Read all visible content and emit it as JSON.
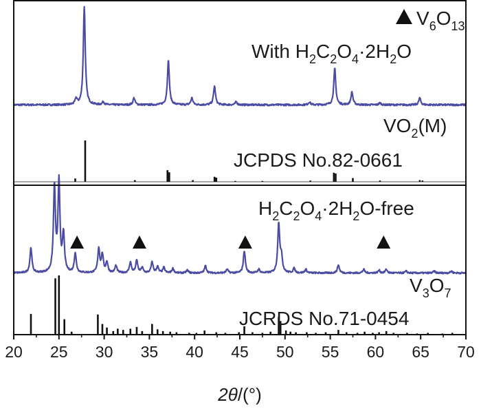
{
  "chart_data": {
    "type": "line",
    "xlabel": {
      "symbol": "2θ",
      "unit": "/(°)"
    },
    "xlim": [
      20,
      70
    ],
    "x_ticks": [
      "20",
      "25",
      "30",
      "35",
      "40",
      "45",
      "50",
      "55",
      "60",
      "65",
      "70"
    ],
    "grid": false,
    "legend": {
      "marker": "▲",
      "text": "V6O13",
      "placement": "top-right"
    },
    "colors": {
      "measured": "#4b4ba3",
      "reference": "#111111",
      "frame": "#111111"
    },
    "panels": [
      {
        "id": "top",
        "series": [
          {
            "kind": "measured",
            "label": "With H2C2O4·2H2O",
            "baseline": 0.04,
            "peaks": [
              [
                26.9,
                0.06
              ],
              [
                27.8,
                1.0
              ],
              [
                29.9,
                0.03
              ],
              [
                33.3,
                0.07
              ],
              [
                37.1,
                0.45
              ],
              [
                39.7,
                0.07
              ],
              [
                42.2,
                0.19
              ],
              [
                44.6,
                0.03
              ],
              [
                52.7,
                0.03
              ],
              [
                55.5,
                0.37
              ],
              [
                57.4,
                0.13
              ],
              [
                60.5,
                0.02
              ],
              [
                64.9,
                0.07
              ]
            ]
          },
          {
            "kind": "reference",
            "label": "VO2(M)",
            "label2": "JCPDS No.82-0661",
            "lines": [
              [
                26.8,
                0.08
              ],
              [
                27.9,
                1.0
              ],
              [
                33.4,
                0.04
              ],
              [
                37.0,
                0.28
              ],
              [
                37.2,
                0.23
              ],
              [
                39.8,
                0.04
              ],
              [
                42.2,
                0.12
              ],
              [
                42.4,
                0.1
              ],
              [
                44.5,
                0.02
              ],
              [
                47.5,
                0.02
              ],
              [
                52.8,
                0.03
              ],
              [
                55.4,
                0.22
              ],
              [
                55.6,
                0.2
              ],
              [
                57.5,
                0.09
              ],
              [
                60.5,
                0.03
              ],
              [
                64.9,
                0.04
              ],
              [
                65.2,
                0.03
              ]
            ]
          }
        ]
      },
      {
        "id": "bottom",
        "series": [
          {
            "kind": "measured",
            "label": "H2C2O4·2H2O-free",
            "baseline": 0.05,
            "peaks": [
              [
                21.9,
                0.28
              ],
              [
                24.5,
                0.95
              ],
              [
                25.0,
                1.0
              ],
              [
                25.5,
                0.42
              ],
              [
                26.8,
                0.22
              ],
              [
                29.4,
                0.27
              ],
              [
                29.8,
                0.2
              ],
              [
                30.3,
                0.12
              ],
              [
                31.3,
                0.08
              ],
              [
                32.9,
                0.12
              ],
              [
                33.6,
                0.14
              ],
              [
                34.2,
                0.06
              ],
              [
                35.3,
                0.12
              ],
              [
                35.9,
                0.07
              ],
              [
                36.6,
                0.06
              ],
              [
                37.6,
                0.05
              ],
              [
                39.2,
                0.03
              ],
              [
                41.2,
                0.08
              ],
              [
                43.6,
                0.04
              ],
              [
                45.5,
                0.25
              ],
              [
                47.1,
                0.04
              ],
              [
                49.3,
                0.55
              ],
              [
                49.6,
                0.18
              ],
              [
                51.0,
                0.05
              ],
              [
                52.3,
                0.04
              ],
              [
                55.9,
                0.09
              ],
              [
                58.7,
                0.04
              ],
              [
                60.4,
                0.03
              ],
              [
                61.2,
                0.04
              ],
              [
                63.4,
                0.02
              ],
              [
                66.5,
                0.02
              ],
              [
                68.4,
                0.02
              ]
            ],
            "markers": [
              27.0,
              33.9,
              45.6,
              60.9
            ]
          },
          {
            "kind": "reference",
            "label": "V3O7",
            "label2": "JCRDS No.71-0454",
            "lines": [
              [
                21.9,
                0.35
              ],
              [
                24.6,
                0.95
              ],
              [
                25.0,
                1.0
              ],
              [
                25.6,
                0.26
              ],
              [
                26.4,
                0.05
              ],
              [
                29.3,
                0.34
              ],
              [
                29.8,
                0.18
              ],
              [
                30.3,
                0.12
              ],
              [
                31.0,
                0.06
              ],
              [
                31.5,
                0.1
              ],
              [
                32.1,
                0.08
              ],
              [
                32.9,
                0.1
              ],
              [
                33.6,
                0.13
              ],
              [
                34.2,
                0.06
              ],
              [
                35.3,
                0.18
              ],
              [
                35.9,
                0.09
              ],
              [
                36.5,
                0.06
              ],
              [
                37.3,
                0.05
              ],
              [
                38.0,
                0.04
              ],
              [
                39.4,
                0.03
              ],
              [
                40.2,
                0.03
              ],
              [
                41.1,
                0.07
              ],
              [
                42.4,
                0.04
              ],
              [
                43.4,
                0.03
              ],
              [
                44.9,
                0.04
              ],
              [
                45.5,
                0.14
              ],
              [
                46.4,
                0.04
              ],
              [
                47.5,
                0.03
              ],
              [
                48.4,
                0.05
              ],
              [
                49.3,
                0.3
              ],
              [
                49.5,
                0.23
              ],
              [
                50.1,
                0.07
              ],
              [
                50.6,
                0.05
              ],
              [
                51.2,
                0.04
              ],
              [
                52.4,
                0.04
              ],
              [
                53.4,
                0.03
              ],
              [
                54.5,
                0.04
              ],
              [
                55.9,
                0.08
              ],
              [
                56.8,
                0.04
              ],
              [
                58.0,
                0.03
              ],
              [
                58.8,
                0.05
              ],
              [
                59.7,
                0.03
              ],
              [
                60.4,
                0.04
              ],
              [
                61.2,
                0.06
              ],
              [
                62.0,
                0.03
              ],
              [
                63.5,
                0.03
              ],
              [
                64.6,
                0.02
              ],
              [
                65.8,
                0.03
              ],
              [
                67.4,
                0.02
              ],
              [
                68.5,
                0.03
              ]
            ]
          }
        ]
      }
    ]
  }
}
